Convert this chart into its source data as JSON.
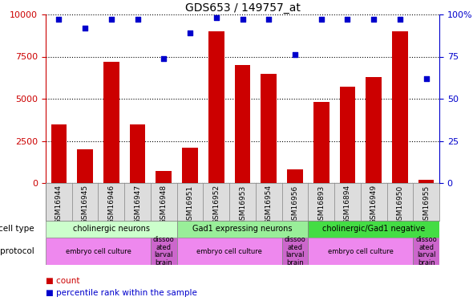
{
  "title": "GDS653 / 149757_at",
  "samples": [
    "GSM16944",
    "GSM16945",
    "GSM16946",
    "GSM16947",
    "GSM16948",
    "GSM16951",
    "GSM16952",
    "GSM16953",
    "GSM16954",
    "GSM16956",
    "GSM16893",
    "GSM16894",
    "GSM16949",
    "GSM16950",
    "GSM16955"
  ],
  "counts": [
    3500,
    2000,
    7200,
    3500,
    700,
    2100,
    9000,
    7000,
    6500,
    800,
    4800,
    5700,
    6300,
    9000,
    200
  ],
  "percentiles": [
    97,
    92,
    97,
    97,
    74,
    89,
    98,
    97,
    97,
    76,
    97,
    97,
    97,
    97,
    62
  ],
  "bar_color": "#cc0000",
  "dot_color": "#0000cc",
  "ylim_left": [
    0,
    10000
  ],
  "ylim_right": [
    0,
    100
  ],
  "yticks_left": [
    0,
    2500,
    5000,
    7500,
    10000
  ],
  "yticks_right": [
    0,
    25,
    50,
    75,
    100
  ],
  "ytick_labels_left": [
    "0",
    "2500",
    "5000",
    "7500",
    "10000"
  ],
  "ytick_labels_right": [
    "0",
    "25",
    "50",
    "75",
    "100%"
  ],
  "cell_type_groups": [
    {
      "label": "cholinergic neurons",
      "start": 0,
      "end": 5,
      "color": "#ccffcc"
    },
    {
      "label": "Gad1 expressing neurons",
      "start": 5,
      "end": 10,
      "color": "#99ee99"
    },
    {
      "label": "cholinergic/Gad1 negative",
      "start": 10,
      "end": 15,
      "color": "#44dd44"
    }
  ],
  "protocol_groups": [
    {
      "label": "embryo cell culture",
      "start": 0,
      "end": 4,
      "color": "#ee88ee"
    },
    {
      "label": "dissoo\nated\nlarval\nbrain",
      "start": 4,
      "end": 5,
      "color": "#cc66cc"
    },
    {
      "label": "embryo cell culture",
      "start": 5,
      "end": 9,
      "color": "#ee88ee"
    },
    {
      "label": "dissoo\nated\nlarval\nbrain",
      "start": 9,
      "end": 10,
      "color": "#cc66cc"
    },
    {
      "label": "embryo cell culture",
      "start": 10,
      "end": 14,
      "color": "#ee88ee"
    },
    {
      "label": "dissoo\nated\nlarval\nbrain",
      "start": 14,
      "end": 15,
      "color": "#cc66cc"
    }
  ],
  "legend_count_color": "#cc0000",
  "legend_pct_color": "#0000cc",
  "tick_label_color_left": "#cc0000",
  "tick_label_color_right": "#0000cc",
  "xtick_bg_color": "#dddddd"
}
